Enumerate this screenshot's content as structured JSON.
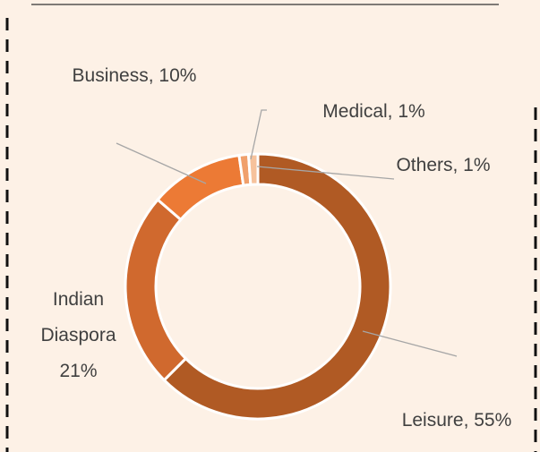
{
  "chart_data": {
    "type": "donut",
    "categories": [
      "Leisure",
      "Indian Diaspora",
      "Business",
      "Medical",
      "Others"
    ],
    "values": [
      55,
      21,
      10,
      1,
      1
    ],
    "value_labels": [
      "Leisure, 55%",
      "Indian Diaspora 21%",
      "Business, 10%",
      "Medical, 1%",
      "Others, 1%"
    ],
    "colors": [
      "#b05a24",
      "#d0692e",
      "#ec7a35",
      "#f0a06c",
      "#f6c29c"
    ]
  }
}
